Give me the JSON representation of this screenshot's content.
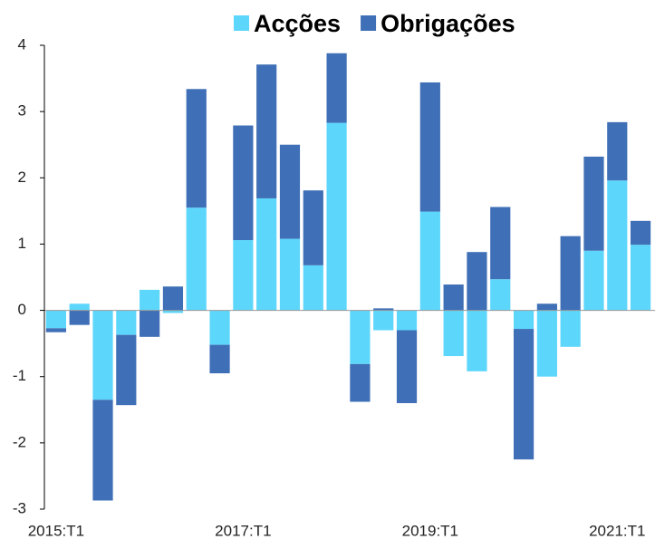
{
  "chart_data": {
    "type": "bar",
    "stacked": true,
    "categories": [
      "2015:T1",
      null,
      null,
      null,
      null,
      null,
      null,
      null,
      "2017:T1",
      null,
      null,
      null,
      null,
      null,
      null,
      null,
      "2019:T1",
      null,
      null,
      null,
      null,
      null,
      null,
      null,
      "2021:T1",
      null
    ],
    "series": [
      {
        "name": "Acções",
        "color": "#5dd6fb",
        "values": [
          -0.27,
          0.1,
          -1.35,
          -0.37,
          0.31,
          -0.04,
          1.55,
          -0.52,
          1.06,
          1.69,
          1.08,
          0.68,
          2.83,
          -0.81,
          -0.3,
          -0.3,
          1.49,
          -0.69,
          -0.92,
          0.47,
          -0.28,
          -1.0,
          -0.55,
          0.9,
          1.96,
          0.99
        ]
      },
      {
        "name": "Obrigações",
        "color": "#3f6fb6",
        "values": [
          -0.06,
          -0.22,
          -1.52,
          -1.06,
          -0.4,
          0.36,
          1.79,
          -0.43,
          1.73,
          2.02,
          1.42,
          1.13,
          1.05,
          -0.57,
          0.03,
          -1.1,
          1.95,
          0.39,
          0.88,
          1.09,
          -1.97,
          0.1,
          1.12,
          1.42,
          0.88,
          0.36
        ]
      }
    ],
    "ylim": [
      -3,
      4
    ],
    "yticks": [
      -3,
      -2,
      -1,
      0,
      1,
      2,
      3,
      4
    ],
    "legend": "top"
  }
}
